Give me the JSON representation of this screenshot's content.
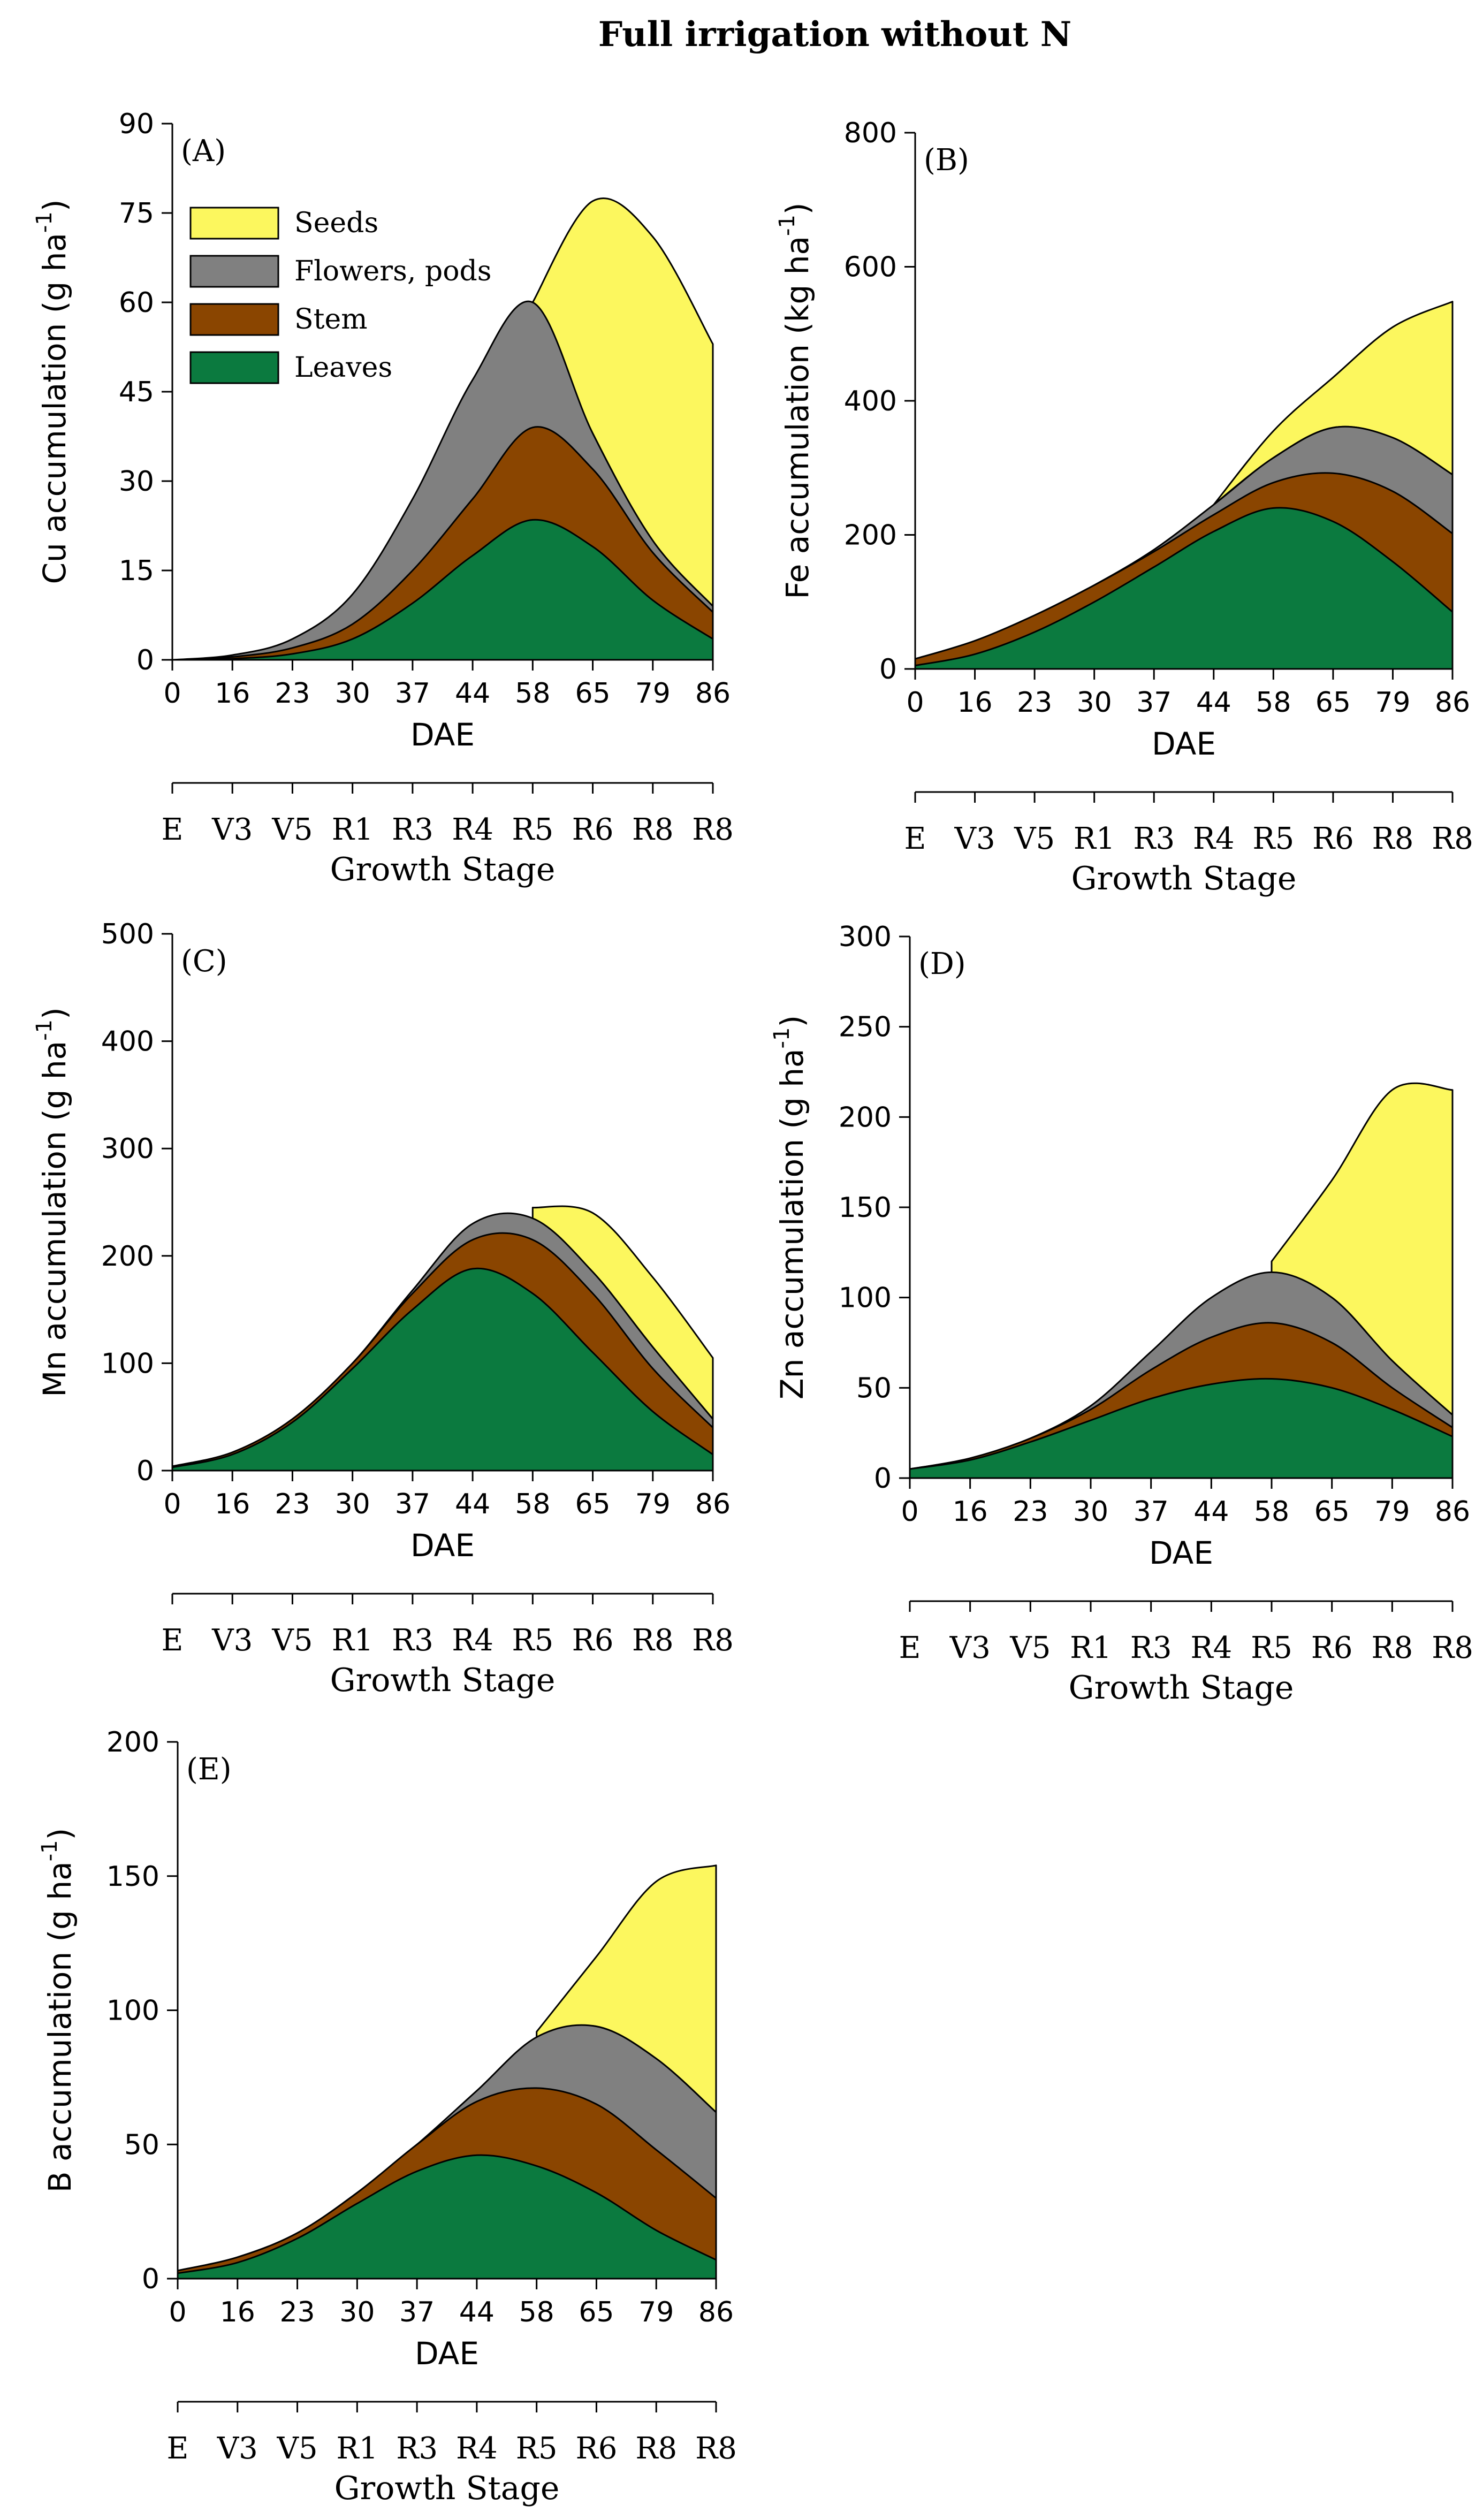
{
  "figure_title": "Full irrigation without N",
  "colors": {
    "seeds": "#fcf75e",
    "flowers_pods": "#808080",
    "stem": "#8a4500",
    "leaves": "#0b7a3f",
    "axis": "#000000"
  },
  "legend": {
    "seeds": "Seeds",
    "flowers_pods": "Flowers, pods",
    "stem": "Stem",
    "leaves": "Leaves"
  },
  "chart_data": [
    {
      "panel": "(A)",
      "type": "area",
      "element": "Cu",
      "ylabel": "Cu accumulation (g ha",
      "ylabel_sup": "-1",
      "ylabel_close": ")",
      "xlabel": "DAE",
      "stage_label": "Growth Stage",
      "ylim": [
        0,
        90
      ],
      "yticks": [
        0,
        15,
        30,
        45,
        60,
        75,
        90
      ],
      "categories": [
        "0",
        "16",
        "23",
        "30",
        "37",
        "44",
        "58",
        "65",
        "79",
        "86"
      ],
      "stages": [
        "E",
        "V3",
        "V5",
        "R1",
        "R3",
        "R4",
        "R5",
        "R6",
        "R8",
        "R8"
      ],
      "series": [
        {
          "name": "Leaves",
          "values": [
            0,
            0.2,
            1,
            3.5,
            9.5,
            17.5,
            23.5,
            19,
            10,
            3.5
          ]
        },
        {
          "name": "Stem",
          "values": [
            0,
            0.5,
            2,
            6,
            15,
            27,
            39,
            32,
            18,
            8
          ]
        },
        {
          "name": "Flowers, pods",
          "values": [
            0,
            0.8,
            3.5,
            11,
            27,
            47,
            60,
            38,
            20,
            9
          ]
        },
        {
          "name": "Seeds",
          "values": [
            null,
            null,
            null,
            null,
            null,
            null,
            60,
            77,
            71,
            53
          ]
        }
      ]
    },
    {
      "panel": "(B)",
      "type": "area",
      "element": "Fe",
      "ylabel": "Fe accumulation (kg ha",
      "ylabel_sup": "-1",
      "ylabel_close": ")",
      "xlabel": "DAE",
      "stage_label": "Growth Stage",
      "ylim": [
        0,
        800
      ],
      "yticks": [
        0,
        200,
        400,
        600,
        800
      ],
      "categories": [
        "0",
        "16",
        "23",
        "30",
        "37",
        "44",
        "58",
        "65",
        "79",
        "86"
      ],
      "stages": [
        "E",
        "V3",
        "V5",
        "R1",
        "R3",
        "R4",
        "R5",
        "R6",
        "R8",
        "R8"
      ],
      "series": [
        {
          "name": "Leaves",
          "values": [
            5,
            22,
            55,
            100,
            152,
            205,
            240,
            220,
            160,
            85
          ]
        },
        {
          "name": "Stem",
          "values": [
            15,
            42,
            80,
            125,
            175,
            230,
            278,
            292,
            265,
            202
          ]
        },
        {
          "name": "Flowers, pods",
          "values": [
            15,
            42,
            80,
            125,
            178,
            245,
            315,
            360,
            345,
            290
          ]
        },
        {
          "name": "Seeds",
          "values": [
            null,
            null,
            null,
            null,
            null,
            245,
            355,
            435,
            510,
            548
          ]
        }
      ]
    },
    {
      "panel": "(C)",
      "type": "area",
      "element": "Mn",
      "ylabel": "Mn accumulation (g ha",
      "ylabel_sup": "-1",
      "ylabel_close": ")",
      "xlabel": "DAE",
      "stage_label": "Growth Stage",
      "ylim": [
        0,
        500
      ],
      "yticks": [
        0,
        100,
        200,
        300,
        400,
        500
      ],
      "categories": [
        "0",
        "16",
        "23",
        "30",
        "37",
        "44",
        "58",
        "65",
        "79",
        "86"
      ],
      "stages": [
        "E",
        "V3",
        "V5",
        "R1",
        "R3",
        "R4",
        "R5",
        "R6",
        "R8",
        "R8"
      ],
      "series": [
        {
          "name": "Leaves",
          "values": [
            3,
            15,
            45,
            95,
            150,
            188,
            165,
            110,
            55,
            15
          ]
        },
        {
          "name": "Stem",
          "values": [
            4,
            17,
            48,
            100,
            165,
            215,
            215,
            165,
            95,
            40
          ]
        },
        {
          "name": "Flowers, pods",
          "values": [
            4,
            17,
            48,
            100,
            168,
            230,
            235,
            185,
            115,
            48
          ]
        },
        {
          "name": "Seeds",
          "values": [
            null,
            null,
            null,
            null,
            null,
            null,
            245,
            240,
            180,
            105
          ]
        }
      ]
    },
    {
      "panel": "(D)",
      "type": "area",
      "element": "Zn",
      "ylabel": "Zn accumulation (g ha",
      "ylabel_sup": "-1",
      "ylabel_close": ")",
      "xlabel": "DAE",
      "stage_label": "Growth Stage",
      "ylim": [
        0,
        300
      ],
      "yticks": [
        0,
        50,
        100,
        150,
        200,
        250,
        300
      ],
      "categories": [
        "0",
        "16",
        "23",
        "30",
        "37",
        "44",
        "58",
        "65",
        "79",
        "86"
      ],
      "stages": [
        "E",
        "V3",
        "V5",
        "R1",
        "R3",
        "R4",
        "R5",
        "R6",
        "R8",
        "R8"
      ],
      "series": [
        {
          "name": "Leaves",
          "values": [
            5,
            10,
            20,
            32,
            44,
            52,
            55,
            50,
            38,
            23
          ]
        },
        {
          "name": "Stem",
          "values": [
            5,
            11,
            22,
            38,
            60,
            78,
            86,
            75,
            50,
            28
          ]
        },
        {
          "name": "Flowers, pods",
          "values": [
            5,
            11,
            22,
            40,
            70,
            100,
            114,
            100,
            65,
            35
          ]
        },
        {
          "name": "Seeds",
          "values": [
            null,
            null,
            null,
            null,
            null,
            null,
            120,
            165,
            215,
            215
          ]
        }
      ]
    },
    {
      "panel": "(E)",
      "type": "area",
      "element": "B",
      "ylabel": "B accumulation (g ha",
      "ylabel_sup": "-1",
      "ylabel_close": ")",
      "xlabel": "DAE",
      "stage_label": "Growth Stage",
      "ylim": [
        0,
        200
      ],
      "yticks": [
        0,
        50,
        100,
        150,
        200
      ],
      "categories": [
        "0",
        "16",
        "23",
        "30",
        "37",
        "44",
        "58",
        "65",
        "79",
        "86"
      ],
      "stages": [
        "E",
        "V3",
        "V5",
        "R1",
        "R3",
        "R4",
        "R5",
        "R6",
        "R8",
        "R8"
      ],
      "series": [
        {
          "name": "Leaves",
          "values": [
            2,
            6,
            15,
            28,
            40,
            46,
            42,
            32,
            18,
            7
          ]
        },
        {
          "name": "Stem",
          "values": [
            3,
            8,
            17,
            32,
            50,
            66,
            71,
            65,
            48,
            30
          ]
        },
        {
          "name": "Flowers, pods",
          "values": [
            3,
            8,
            17,
            32,
            50,
            70,
            90,
            94,
            82,
            62
          ]
        },
        {
          "name": "Seeds",
          "values": [
            null,
            null,
            null,
            null,
            null,
            null,
            92,
            120,
            148,
            154
          ]
        }
      ]
    }
  ]
}
